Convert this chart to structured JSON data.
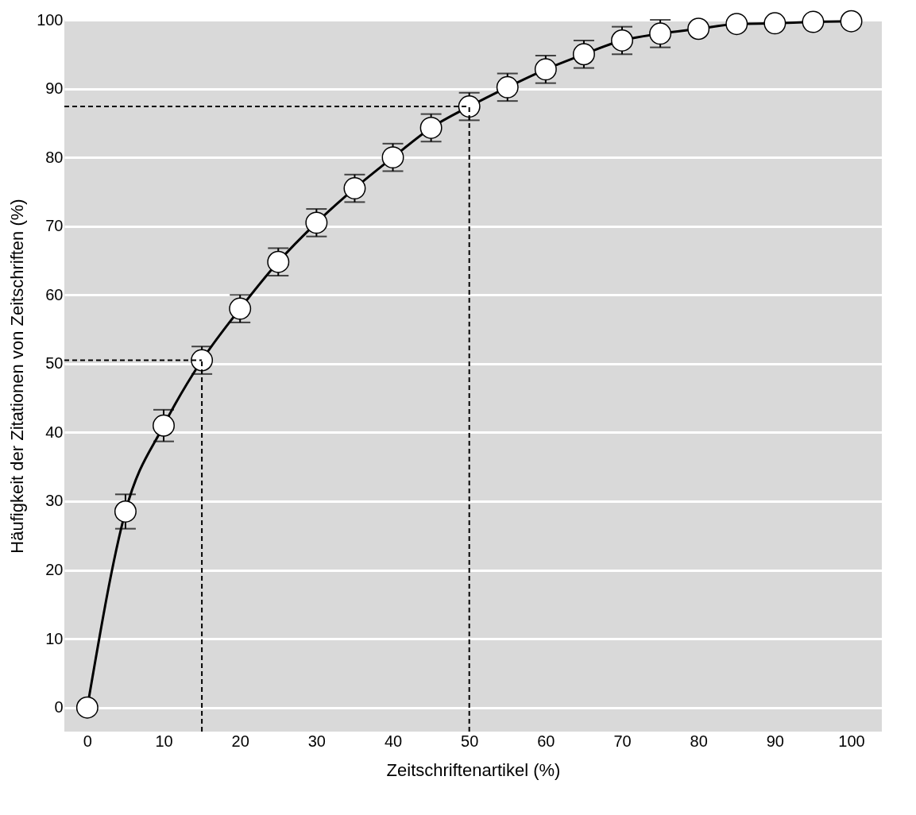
{
  "chart_data": {
    "type": "line",
    "xlabel": "Zeitschriftenartikel  (%)",
    "ylabel": "Häufigkeit der Zitationen von Zeitschriften (%)",
    "x": [
      0,
      5,
      10,
      15,
      20,
      25,
      30,
      35,
      40,
      45,
      50,
      55,
      60,
      65,
      70,
      75,
      80,
      85,
      90,
      95,
      100
    ],
    "series": [
      {
        "color": "#000000",
        "values": [
          0,
          28.5,
          41,
          50.5,
          58,
          64.8,
          70.5,
          75.5,
          80,
          84.3,
          87.4,
          90.2,
          92.8,
          95,
          97,
          98,
          98.7,
          99.4,
          99.5,
          99.7,
          99.8
        ],
        "errors": [
          null,
          2.5,
          2.3,
          2,
          2,
          2,
          2,
          2,
          2,
          2,
          2,
          2,
          2,
          2,
          2,
          2,
          null,
          null,
          null,
          null,
          null
        ]
      }
    ],
    "xlim": [
      -3,
      104
    ],
    "ylim": [
      -3.5,
      100
    ],
    "xticks": [
      0,
      10,
      20,
      30,
      40,
      50,
      60,
      70,
      80,
      90,
      100
    ],
    "yticks": [
      0,
      10,
      20,
      30,
      40,
      50,
      60,
      70,
      80,
      90,
      100
    ],
    "ref_lines": [
      {
        "axis": "x",
        "value": 15,
        "line_style": "dashed",
        "color": "#000000"
      },
      {
        "axis": "x",
        "value": 50,
        "line_style": "dashed",
        "color": "#000000"
      },
      {
        "axis": "y",
        "value": 50.5,
        "line_style": "dashed",
        "color": "#000000"
      },
      {
        "axis": "y",
        "value": 87.4,
        "line_style": "dashed",
        "color": "#000000"
      }
    ],
    "grid": "y",
    "marker": "circle",
    "line_style": "solid"
  }
}
